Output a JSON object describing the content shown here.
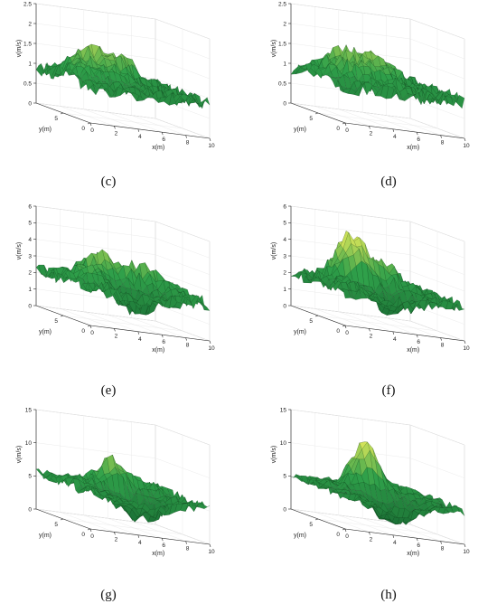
{
  "chart_data": [
    {
      "type": "surface",
      "panel": "(c)",
      "xlabel": "x(m)",
      "ylabel": "y(m)",
      "zlabel": "v(m/s)",
      "xlim": [
        0,
        10
      ],
      "ylim": [
        0,
        10
      ],
      "zlim": [
        0,
        2.5
      ],
      "xticks": [
        "0",
        "2",
        "4",
        "6",
        "8",
        "10"
      ],
      "yticks": [
        "0",
        "5"
      ],
      "zticks": [
        "0",
        "0.5",
        "1",
        "1.5",
        "2",
        "2.5"
      ],
      "grid": true,
      "surface": {
        "base": 0.85,
        "peaks": [
          [
            3,
            7,
            0.7,
            1.4
          ],
          [
            6,
            7.5,
            0.6,
            1.2
          ],
          [
            1.5,
            4,
            0.4,
            1.3
          ],
          [
            4.5,
            5,
            0.3,
            1.0
          ]
        ],
        "ripple": 0.18,
        "seed": 1
      }
    },
    {
      "type": "surface",
      "panel": "(d)",
      "xlabel": "x(m)",
      "ylabel": "y(m)",
      "zlabel": "v(m/s)",
      "xlim": [
        0,
        10
      ],
      "ylim": [
        0,
        10
      ],
      "zlim": [
        0,
        2.5
      ],
      "xticks": [
        "0",
        "2",
        "4",
        "6",
        "8",
        "10"
      ],
      "yticks": [
        "0",
        "5"
      ],
      "zticks": [
        "0",
        "0.5",
        "1",
        "1.5",
        "2",
        "2.5"
      ],
      "grid": true,
      "surface": {
        "base": 0.9,
        "peaks": [
          [
            3,
            7,
            0.6,
            1.4
          ],
          [
            6,
            7,
            0.6,
            1.3
          ],
          [
            2,
            4,
            0.4,
            1.3
          ],
          [
            5,
            4,
            0.3,
            1.0
          ]
        ],
        "ripple": 0.2,
        "seed": 2
      }
    },
    {
      "type": "surface",
      "panel": "(e)",
      "xlabel": "x(m)",
      "ylabel": "y(m)",
      "zlabel": "v(m/s)",
      "xlim": [
        0,
        10
      ],
      "ylim": [
        0,
        10
      ],
      "zlim": [
        0,
        6
      ],
      "xticks": [
        "0",
        "2",
        "4",
        "6",
        "8",
        "10"
      ],
      "yticks": [
        "0",
        "5"
      ],
      "zticks": [
        "0",
        "1",
        "2",
        "3",
        "4",
        "5",
        "6"
      ],
      "grid": true,
      "surface": {
        "base": 2.2,
        "peaks": [
          [
            4,
            7,
            1.5,
            1.3
          ],
          [
            2,
            4,
            1.0,
            1.2
          ],
          [
            7,
            6,
            1.2,
            1.4
          ],
          [
            5,
            3,
            -1.2,
            1.6
          ]
        ],
        "ripple": 0.45,
        "seed": 3
      }
    },
    {
      "type": "surface",
      "panel": "(f)",
      "xlabel": "x(m)",
      "ylabel": "y(m)",
      "zlabel": "v(m/s)",
      "xlim": [
        0,
        10
      ],
      "ylim": [
        0,
        10
      ],
      "zlim": [
        0,
        6
      ],
      "xticks": [
        "0",
        "2",
        "4",
        "6",
        "8",
        "10"
      ],
      "yticks": [
        "0",
        "5"
      ],
      "zticks": [
        "0",
        "1",
        "2",
        "3",
        "4",
        "5",
        "6"
      ],
      "grid": true,
      "surface": {
        "base": 2.0,
        "peaks": [
          [
            3.5,
            6.5,
            3.0,
            1.2
          ],
          [
            6.5,
            6.5,
            1.3,
            1.2
          ],
          [
            2,
            3,
            0.5,
            1.0
          ],
          [
            5,
            2.5,
            -1.0,
            1.5
          ]
        ],
        "ripple": 0.4,
        "seed": 4
      }
    },
    {
      "type": "surface",
      "panel": "(g)",
      "xlabel": "x(m)",
      "ylabel": "y(m)",
      "zlabel": "v(m/s)",
      "xlim": [
        0,
        10
      ],
      "ylim": [
        0,
        10
      ],
      "zlim": [
        0,
        15
      ],
      "xticks": [
        "0",
        "2",
        "4",
        "6",
        "8",
        "10"
      ],
      "yticks": [
        "0",
        "5"
      ],
      "zticks": [
        "0",
        "5",
        "10",
        "15"
      ],
      "grid": true,
      "surface": {
        "base": 5.5,
        "peaks": [
          [
            4.5,
            6,
            4.5,
            1.0
          ],
          [
            2,
            4,
            1.5,
            1.2
          ],
          [
            7,
            7,
            1.5,
            1.2
          ],
          [
            5,
            2.5,
            -3.5,
            1.8
          ]
        ],
        "ripple": 0.9,
        "seed": 5
      }
    },
    {
      "type": "surface",
      "panel": "(h)",
      "xlabel": "x(m)",
      "ylabel": "y(m)",
      "zlabel": "v(m/s)",
      "xlim": [
        0,
        10
      ],
      "ylim": [
        0,
        10
      ],
      "zlim": [
        0,
        15
      ],
      "xticks": [
        "0",
        "2",
        "4",
        "6",
        "8",
        "10"
      ],
      "yticks": [
        "0",
        "5"
      ],
      "zticks": [
        "0",
        "5",
        "10",
        "15"
      ],
      "grid": true,
      "surface": {
        "base": 5.0,
        "peaks": [
          [
            4.5,
            6,
            7.5,
            1.1
          ],
          [
            2,
            4,
            1.0,
            1.2
          ],
          [
            7,
            7,
            1.0,
            1.2
          ],
          [
            5,
            2.5,
            -3.5,
            1.8
          ]
        ],
        "ripple": 0.7,
        "seed": 6
      }
    }
  ],
  "colors": {
    "low": "#14602e",
    "mid": "#2fa04a",
    "high": "#f4f15c",
    "edge": "#0c2a14",
    "box": "#c8c8c8",
    "axis": "#262626"
  }
}
